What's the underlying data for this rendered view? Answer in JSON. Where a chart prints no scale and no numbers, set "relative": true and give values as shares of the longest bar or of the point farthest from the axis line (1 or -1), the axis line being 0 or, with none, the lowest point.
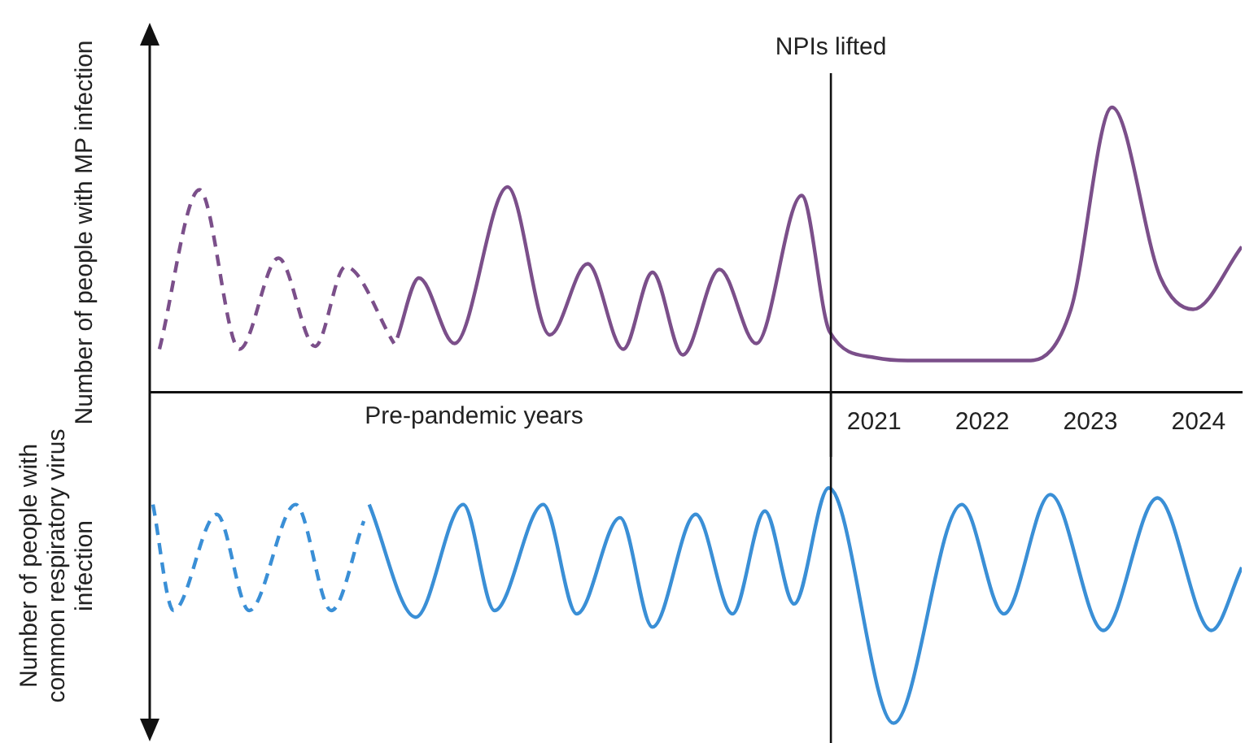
{
  "chart_data": [
    {
      "type": "line",
      "relative": true,
      "ylabel": "Number of people with MP infection",
      "xlim": [
        2014.3,
        2024.4
      ],
      "xticks": [
        2021,
        2022,
        2023,
        2024
      ],
      "marker": "none",
      "ref_lines": [
        {
          "axis": "x",
          "value": 2020.6,
          "label": "NPIs lifted"
        }
      ],
      "annotations": [
        "Pre-pandemic years"
      ],
      "series": [
        {
          "color": "#7b4f8a",
          "line_style": "dashed",
          "x": [
            2014.39,
            2014.76,
            2015.13,
            2015.49,
            2015.83,
            2016.11,
            2016.56
          ],
          "values": [
            0.15,
            0.71,
            0.15,
            0.47,
            0.16,
            0.44,
            0.17
          ]
        },
        {
          "color": "#7b4f8a",
          "line_style": "solid",
          "x": [
            2016.59,
            2016.79,
            2017.12,
            2017.61,
            2018.0,
            2018.35,
            2018.68,
            2018.95,
            2019.23,
            2019.57,
            2019.91,
            2020.33,
            2020.59,
            2021.01,
            2021.31,
            2022.45,
            2022.82,
            2023.2,
            2023.65,
            2023.95,
            2024.4
          ],
          "values": [
            0.19,
            0.4,
            0.17,
            0.72,
            0.2,
            0.45,
            0.15,
            0.42,
            0.13,
            0.43,
            0.17,
            0.69,
            0.21,
            0.12,
            0.11,
            0.11,
            0.29,
            1,
            0.4,
            0.29,
            0.51
          ]
        }
      ]
    },
    {
      "type": "line",
      "relative": true,
      "ylabel": "Number of people with common respiratory virus infection",
      "xlim": [
        2014.3,
        2024.4
      ],
      "xticks": [
        2021,
        2022,
        2023,
        2024
      ],
      "tick_labels": false,
      "marker": "none",
      "ref_lines": [
        {
          "axis": "x",
          "value": 2020.6
        }
      ],
      "series": [
        {
          "color": "#3a8fd6",
          "line_style": "dashed",
          "x": [
            2014.33,
            2014.52,
            2014.92,
            2015.22,
            2015.65,
            2015.98,
            2016.28
          ],
          "values": [
            -0.34,
            -0.66,
            -0.37,
            -0.66,
            -0.34,
            -0.66,
            -0.39
          ]
        },
        {
          "color": "#3a8fd6",
          "line_style": "solid",
          "x": [
            2016.33,
            2016.76,
            2017.2,
            2017.49,
            2017.94,
            2018.25,
            2018.65,
            2018.95,
            2019.35,
            2019.69,
            2019.99,
            2020.26,
            2020.58,
            2021.18,
            2021.81,
            2022.2,
            2022.63,
            2023.12,
            2023.62,
            2024.12,
            2024.4
          ],
          "values": [
            -0.34,
            -0.68,
            -0.34,
            -0.66,
            -0.34,
            -0.67,
            -0.38,
            -0.71,
            -0.37,
            -0.67,
            -0.36,
            -0.64,
            -0.29,
            -1,
            -0.34,
            -0.67,
            -0.31,
            -0.72,
            -0.32,
            -0.72,
            -0.53
          ]
        }
      ]
    }
  ]
}
